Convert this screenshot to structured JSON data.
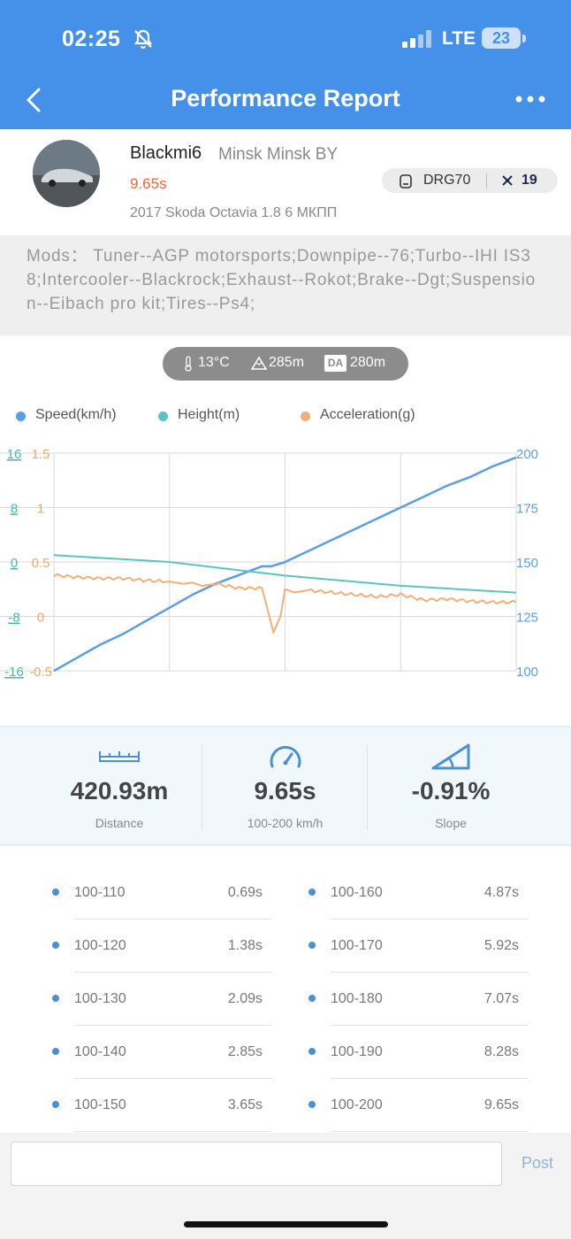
{
  "status_bar": {
    "time": "02:25",
    "network": "LTE",
    "battery": "23"
  },
  "header": {
    "title": "Performance Report"
  },
  "profile": {
    "username": "Blackmi6",
    "location": "Minsk Minsk BY",
    "time": "9.65s",
    "car": "2017 Skoda Octavia 1.8 6 МКПП",
    "device": "DRG70",
    "rank": "19"
  },
  "mods": {
    "text": "Mods： Tuner--AGP motorsports;Downpipe--76;Turbo--IHI IS38;Intercooler--Blackrock;Exhaust--Rokot;Brake--Dgt;Suspension--Eibach pro kit;Tires--Ps4;"
  },
  "conditions": {
    "temperature": "13°C",
    "altitude": "285m",
    "density_altitude_label": "DA",
    "density_altitude": "280m"
  },
  "legend": [
    "Speed(km/h)",
    "Height(m)",
    "Acceleration(g)"
  ],
  "colors": {
    "speed": "#5a9ee6",
    "height": "#5bc4c0",
    "acceleration": "#f1b07a",
    "accent": "#4590e9"
  },
  "chart_data": {
    "type": "line",
    "series": [
      {
        "name": "Speed(km/h)",
        "axis": "right",
        "x": [
          0,
          0.05,
          0.1,
          0.15,
          0.2,
          0.25,
          0.3,
          0.35,
          0.4,
          0.45,
          0.47,
          0.5,
          0.55,
          0.6,
          0.65,
          0.7,
          0.75,
          0.8,
          0.85,
          0.9,
          0.95,
          1.0
        ],
        "y": [
          100,
          106,
          112,
          117,
          123,
          129,
          135,
          140,
          144,
          148,
          148,
          150,
          155,
          160,
          165,
          170,
          175,
          180,
          185,
          189,
          194,
          198
        ]
      },
      {
        "name": "Height(m)",
        "axis": "left_outer",
        "x": [
          0,
          0.25,
          0.5,
          0.75,
          1.0
        ],
        "y": [
          1.0,
          0.0,
          -2.0,
          -3.5,
          -4.5
        ]
      },
      {
        "name": "Acceleration(g)",
        "axis": "left_inner",
        "x": [
          0,
          0.05,
          0.1,
          0.15,
          0.2,
          0.25,
          0.28,
          0.3,
          0.32,
          0.35,
          0.4,
          0.45,
          0.46,
          0.475,
          0.49,
          0.5,
          0.52,
          0.55,
          0.6,
          0.65,
          0.7,
          0.75,
          0.8,
          0.85,
          0.9,
          0.95,
          1.0
        ],
        "y": [
          0.38,
          0.36,
          0.35,
          0.35,
          0.33,
          0.32,
          0.3,
          0.31,
          0.28,
          0.3,
          0.26,
          0.26,
          0.1,
          -0.15,
          0.0,
          0.25,
          0.22,
          0.24,
          0.22,
          0.2,
          0.18,
          0.2,
          0.15,
          0.16,
          0.14,
          0.13,
          0.13
        ]
      }
    ],
    "axes": {
      "left_outer": {
        "ticks": [
          "16",
          "8",
          "0",
          "-8",
          "-16"
        ],
        "ylim": [
          -16,
          16
        ]
      },
      "left_inner": {
        "ticks": [
          "1.5",
          "1",
          "0.5",
          "0",
          "-0.5"
        ],
        "ylim": [
          -0.5,
          1.5
        ]
      },
      "right": {
        "ticks": [
          "200",
          "175",
          "150",
          "125",
          "100"
        ],
        "ylim": [
          100,
          200
        ]
      }
    },
    "grid": true,
    "legend_position": "top"
  },
  "stats": [
    {
      "value": "420.93m",
      "label": "Distance"
    },
    {
      "value": "9.65s",
      "label": "100-200 km/h"
    },
    {
      "value": "-0.91%",
      "label": "Slope"
    }
  ],
  "splits": [
    {
      "range": "100-110",
      "time": "0.69s"
    },
    {
      "range": "100-120",
      "time": "1.38s"
    },
    {
      "range": "100-130",
      "time": "2.09s"
    },
    {
      "range": "100-140",
      "time": "2.85s"
    },
    {
      "range": "100-150",
      "time": "3.65s"
    },
    {
      "range": "100-160",
      "time": "4.87s"
    },
    {
      "range": "100-170",
      "time": "5.92s"
    },
    {
      "range": "100-180",
      "time": "7.07s"
    },
    {
      "range": "100-190",
      "time": "8.28s"
    },
    {
      "range": "100-200",
      "time": "9.65s"
    }
  ],
  "comment": {
    "placeholder": "",
    "post_label": "Post"
  }
}
